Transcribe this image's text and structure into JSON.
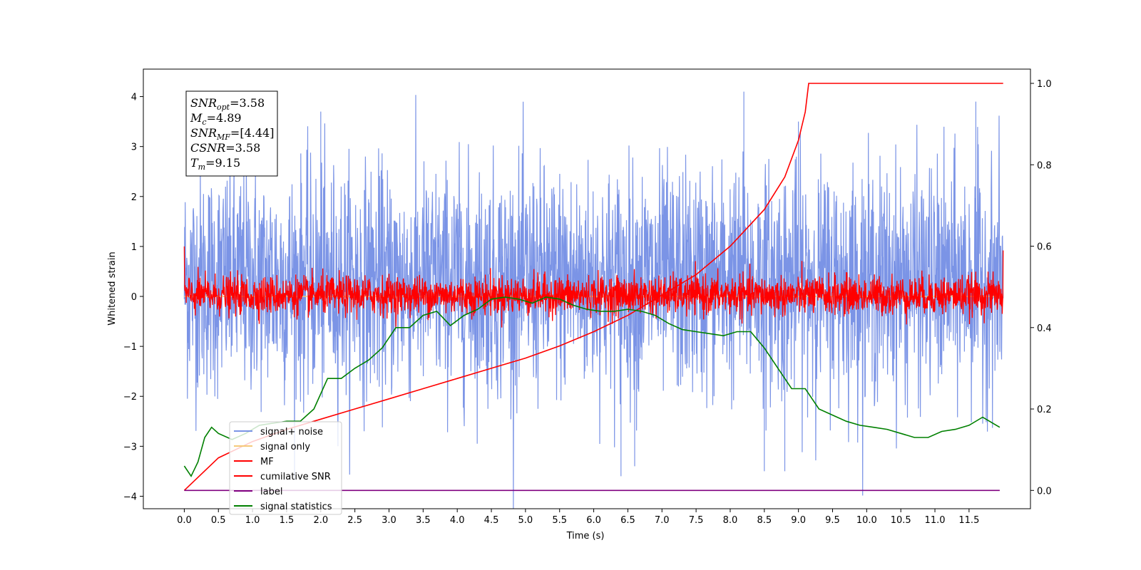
{
  "chart_data": {
    "type": "line",
    "xlabel": "Time (s)",
    "ylabel": "Whitened strain",
    "xlim": [
      -0.6,
      12.4
    ],
    "ylim": [
      -4.25,
      4.55
    ],
    "y2lim": [
      -0.045,
      1.035
    ],
    "x_ticks": [
      "0.0",
      "0.5",
      "1.0",
      "1.5",
      "2.0",
      "2.5",
      "3.0",
      "3.5",
      "4.0",
      "4.5",
      "5.0",
      "5.5",
      "6.0",
      "6.5",
      "7.0",
      "7.5",
      "8.0",
      "8.5",
      "9.0",
      "9.5",
      "10.0",
      "10.5",
      "11.0",
      "11.5"
    ],
    "y_ticks": [
      "4",
      "3",
      "2",
      "1",
      "0",
      "−1",
      "−2",
      "−3",
      "−4"
    ],
    "y2_ticks": [
      "1.0",
      "0.8",
      "0.6",
      "0.4",
      "0.2",
      "0.0"
    ],
    "grid": false,
    "legend_position": "lower-left",
    "annotation": {
      "lines": [
        {
          "main": "SNR",
          "sub": "opt",
          "rest": "=3.58"
        },
        {
          "main": "M",
          "sub": "c",
          "rest": "=4.89"
        },
        {
          "main": "SNR",
          "sub": "MF",
          "rest": "=[4.44]"
        },
        {
          "main": "CSNR",
          "sub": "",
          "rest": "=3.58"
        },
        {
          "main": "T",
          "sub": "m",
          "rest": "=9.15"
        }
      ]
    },
    "series": [
      {
        "name": "signal+ noise",
        "color": "#7b94e6",
        "axis": "left",
        "kind": "noise",
        "x_range": [
          0.0,
          12.0
        ],
        "typical_range": [
          -1.6,
          2.2
        ],
        "peaks_x": [
          8.2,
          8.8,
          11.6,
          6.6,
          2.0,
          6.4,
          9.0,
          8.5
        ]
      },
      {
        "name": "signal only",
        "color": "#f5c97a",
        "axis": "left",
        "kind": "flat",
        "value": 0.0
      },
      {
        "name": "MF",
        "color": "#ff0000",
        "axis": "left",
        "kind": "noise",
        "x_range": [
          0.0,
          12.0
        ],
        "typical_range": [
          -0.35,
          0.5
        ],
        "start_value": 1.0,
        "end_value": 0.92
      },
      {
        "name": "cumilative SNR",
        "color": "#ff0000",
        "axis": "right",
        "x": [
          0.0,
          0.5,
          1.0,
          1.5,
          2.0,
          2.5,
          3.0,
          3.5,
          4.0,
          4.5,
          5.0,
          5.5,
          6.0,
          6.5,
          7.0,
          7.5,
          8.0,
          8.5,
          8.8,
          9.0,
          9.1,
          9.15,
          12.0
        ],
        "values": [
          0.0,
          0.08,
          0.12,
          0.15,
          0.175,
          0.2,
          0.225,
          0.25,
          0.275,
          0.3,
          0.325,
          0.355,
          0.39,
          0.43,
          0.48,
          0.53,
          0.6,
          0.69,
          0.77,
          0.86,
          0.93,
          1.0,
          1.0
        ]
      },
      {
        "name": "label",
        "color": "#800080",
        "axis": "right",
        "x": [
          0.0,
          11.95
        ],
        "values": [
          0.0,
          0.0
        ]
      },
      {
        "name": "signal statistics",
        "color": "#008000",
        "axis": "right",
        "x": [
          0.0,
          0.1,
          0.2,
          0.3,
          0.4,
          0.5,
          0.7,
          0.9,
          1.1,
          1.3,
          1.5,
          1.7,
          1.9,
          2.1,
          2.3,
          2.5,
          2.7,
          2.9,
          3.1,
          3.3,
          3.5,
          3.7,
          3.9,
          4.1,
          4.3,
          4.5,
          4.7,
          4.9,
          5.1,
          5.3,
          5.5,
          5.7,
          5.9,
          6.1,
          6.3,
          6.5,
          6.7,
          6.9,
          7.1,
          7.3,
          7.5,
          7.7,
          7.9,
          8.1,
          8.3,
          8.5,
          8.7,
          8.9,
          9.1,
          9.3,
          9.5,
          9.7,
          9.9,
          10.1,
          10.3,
          10.5,
          10.7,
          10.9,
          11.1,
          11.3,
          11.5,
          11.7,
          11.95
        ],
        "values": [
          0.06,
          0.035,
          0.07,
          0.13,
          0.155,
          0.14,
          0.125,
          0.14,
          0.16,
          0.165,
          0.17,
          0.17,
          0.2,
          0.275,
          0.275,
          0.3,
          0.32,
          0.35,
          0.4,
          0.4,
          0.43,
          0.44,
          0.405,
          0.43,
          0.445,
          0.47,
          0.475,
          0.47,
          0.46,
          0.475,
          0.47,
          0.455,
          0.445,
          0.44,
          0.44,
          0.445,
          0.44,
          0.43,
          0.41,
          0.395,
          0.39,
          0.385,
          0.38,
          0.39,
          0.39,
          0.35,
          0.3,
          0.25,
          0.25,
          0.2,
          0.185,
          0.17,
          0.16,
          0.155,
          0.15,
          0.14,
          0.13,
          0.13,
          0.145,
          0.15,
          0.16,
          0.18,
          0.155
        ]
      }
    ]
  }
}
